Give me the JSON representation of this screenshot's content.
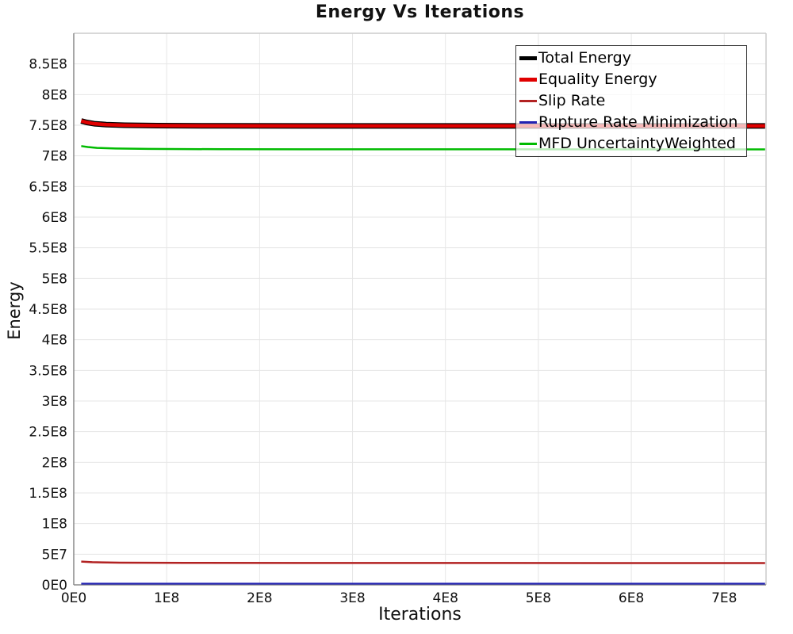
{
  "title": "Energy Vs Iterations",
  "chart_data": {
    "type": "line",
    "title": "Energy Vs Iterations",
    "xlabel": "Iterations",
    "ylabel": "Energy",
    "xlim": [
      0,
      745000000
    ],
    "ylim": [
      0,
      900000000
    ],
    "grid": true,
    "legend_position": "top-right",
    "xticks": [
      {
        "v": 0,
        "label": "0E0"
      },
      {
        "v": 100000000,
        "label": "1E8"
      },
      {
        "v": 200000000,
        "label": "2E8"
      },
      {
        "v": 300000000,
        "label": "3E8"
      },
      {
        "v": 400000000,
        "label": "4E8"
      },
      {
        "v": 500000000,
        "label": "5E8"
      },
      {
        "v": 600000000,
        "label": "6E8"
      },
      {
        "v": 700000000,
        "label": "7E8"
      }
    ],
    "yticks": [
      {
        "v": 0,
        "label": "0E0"
      },
      {
        "v": 50000000,
        "label": "5E7"
      },
      {
        "v": 100000000,
        "label": "1E8"
      },
      {
        "v": 150000000,
        "label": "1.5E8"
      },
      {
        "v": 200000000,
        "label": "2E8"
      },
      {
        "v": 250000000,
        "label": "2.5E8"
      },
      {
        "v": 300000000,
        "label": "3E8"
      },
      {
        "v": 350000000,
        "label": "3.5E8"
      },
      {
        "v": 400000000,
        "label": "4E8"
      },
      {
        "v": 450000000,
        "label": "4.5E8"
      },
      {
        "v": 500000000,
        "label": "5E8"
      },
      {
        "v": 550000000,
        "label": "5.5E8"
      },
      {
        "v": 600000000,
        "label": "6E8"
      },
      {
        "v": 650000000,
        "label": "6.5E8"
      },
      {
        "v": 700000000,
        "label": "7E8"
      },
      {
        "v": 750000000,
        "label": "7.5E8"
      },
      {
        "v": 800000000,
        "label": "8E8"
      },
      {
        "v": 850000000,
        "label": "8.5E8"
      },
      {
        "v": 900000000,
        "label": ""
      }
    ],
    "series": [
      {
        "name": "Total Energy",
        "color": "#000000",
        "stroke_width": 7,
        "swatch_height": 5,
        "points": [
          [
            8000000,
            757000000
          ],
          [
            14000000,
            754500000
          ],
          [
            22000000,
            752500000
          ],
          [
            35000000,
            751000000
          ],
          [
            55000000,
            750000000
          ],
          [
            90000000,
            749300000
          ],
          [
            160000000,
            749000000
          ],
          [
            300000000,
            748800000
          ],
          [
            744000000,
            748800000
          ]
        ]
      },
      {
        "name": "Equality Energy",
        "color": "#e00000",
        "stroke_width": 4.5,
        "swatch_height": 4.5,
        "points": [
          [
            8000000,
            757000000
          ],
          [
            14000000,
            754500000
          ],
          [
            22000000,
            752500000
          ],
          [
            35000000,
            751000000
          ],
          [
            55000000,
            750000000
          ],
          [
            90000000,
            749300000
          ],
          [
            160000000,
            749000000
          ],
          [
            300000000,
            748800000
          ],
          [
            744000000,
            748800000
          ]
        ]
      },
      {
        "name": "Slip Rate",
        "color": "#b22222",
        "stroke_width": 2.5,
        "swatch_height": 2.5,
        "points": [
          [
            8000000,
            38000000
          ],
          [
            20000000,
            37000000
          ],
          [
            50000000,
            36200000
          ],
          [
            120000000,
            35800000
          ],
          [
            744000000,
            35500000
          ]
        ]
      },
      {
        "name": "Rupture Rate Minimization",
        "color": "#2222b2",
        "stroke_width": 2.2,
        "swatch_height": 2.5,
        "points": [
          [
            8000000,
            2000000
          ],
          [
            744000000,
            2000000
          ]
        ]
      },
      {
        "name": "MFD UncertaintyWeighted",
        "color": "#00bb00",
        "stroke_width": 2.5,
        "swatch_height": 2.5,
        "points": [
          [
            8000000,
            716000000
          ],
          [
            15000000,
            714500000
          ],
          [
            25000000,
            713000000
          ],
          [
            45000000,
            712000000
          ],
          [
            80000000,
            711300000
          ],
          [
            160000000,
            710800000
          ],
          [
            744000000,
            710500000
          ]
        ]
      }
    ],
    "colors": {
      "grid": "#e6e6e6",
      "axis": "#8a8a8a",
      "frame": "#cccccc"
    }
  }
}
